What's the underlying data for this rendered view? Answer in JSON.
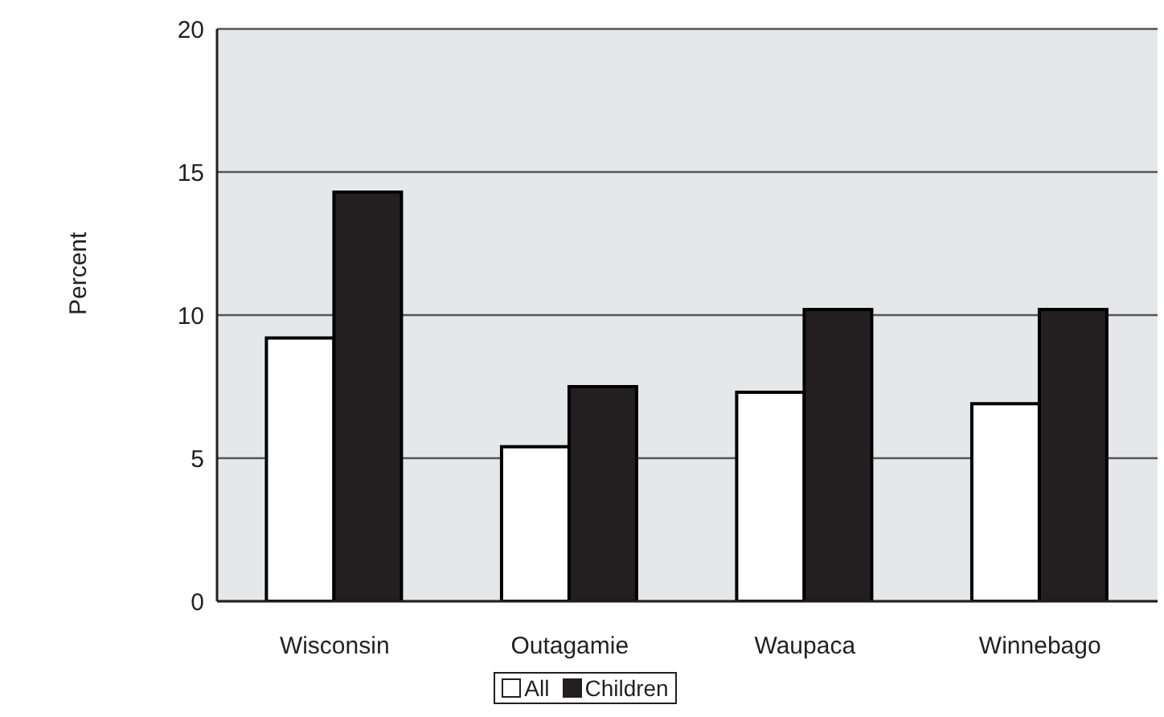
{
  "chart_data": {
    "type": "bar",
    "ylabel": "Percent",
    "categories": [
      "Wisconsin",
      "Outagamie",
      "Waupaca",
      "Winnebago"
    ],
    "series": [
      {
        "name": "All",
        "color": "#ffffff",
        "values": [
          9.2,
          5.4,
          7.3,
          6.9
        ]
      },
      {
        "name": "Children",
        "color": "#231f20",
        "values": [
          14.3,
          7.5,
          10.2,
          10.2
        ]
      }
    ],
    "ylim": [
      0,
      20
    ],
    "yticks": [
      0,
      5,
      10,
      15,
      20
    ],
    "grid": "y",
    "legend": "bottom"
  }
}
